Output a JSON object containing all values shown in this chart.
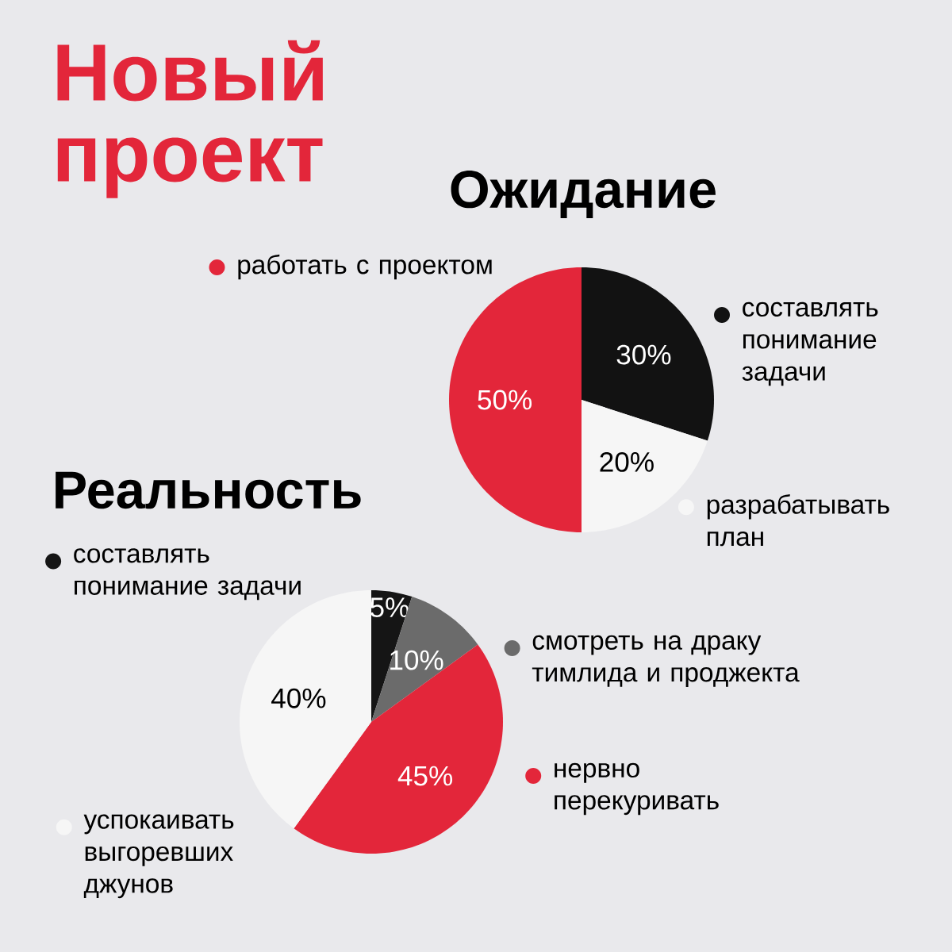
{
  "chart_data": [
    {
      "type": "pie",
      "title": "Новый проект",
      "subtitle": "Ожидание",
      "categories": [
        "составлять понимание задачи",
        "разрабатывать план",
        "работать с проектом"
      ],
      "values": [
        30,
        20,
        50
      ],
      "colors": [
        "#121212",
        "#f6f6f6",
        "#e3263a"
      ],
      "value_labels": [
        "30%",
        "20%",
        "50%"
      ],
      "legend": "bottom left"
    },
    {
      "type": "pie",
      "title": "Реальность",
      "categories": [
        "составлять понимание задачи",
        "смотреть на драку тимлида и проджекта",
        "нервно перекуривать",
        "успокаивать выгоревших джунов"
      ],
      "values": [
        5,
        10,
        45,
        40
      ],
      "colors": [
        "#151515",
        "#6b6b6b",
        "#e3263a",
        "#f6f6f6"
      ],
      "value_labels": [
        "5%",
        "10%",
        "45%",
        "40%"
      ],
      "legend": "right"
    }
  ]
}
